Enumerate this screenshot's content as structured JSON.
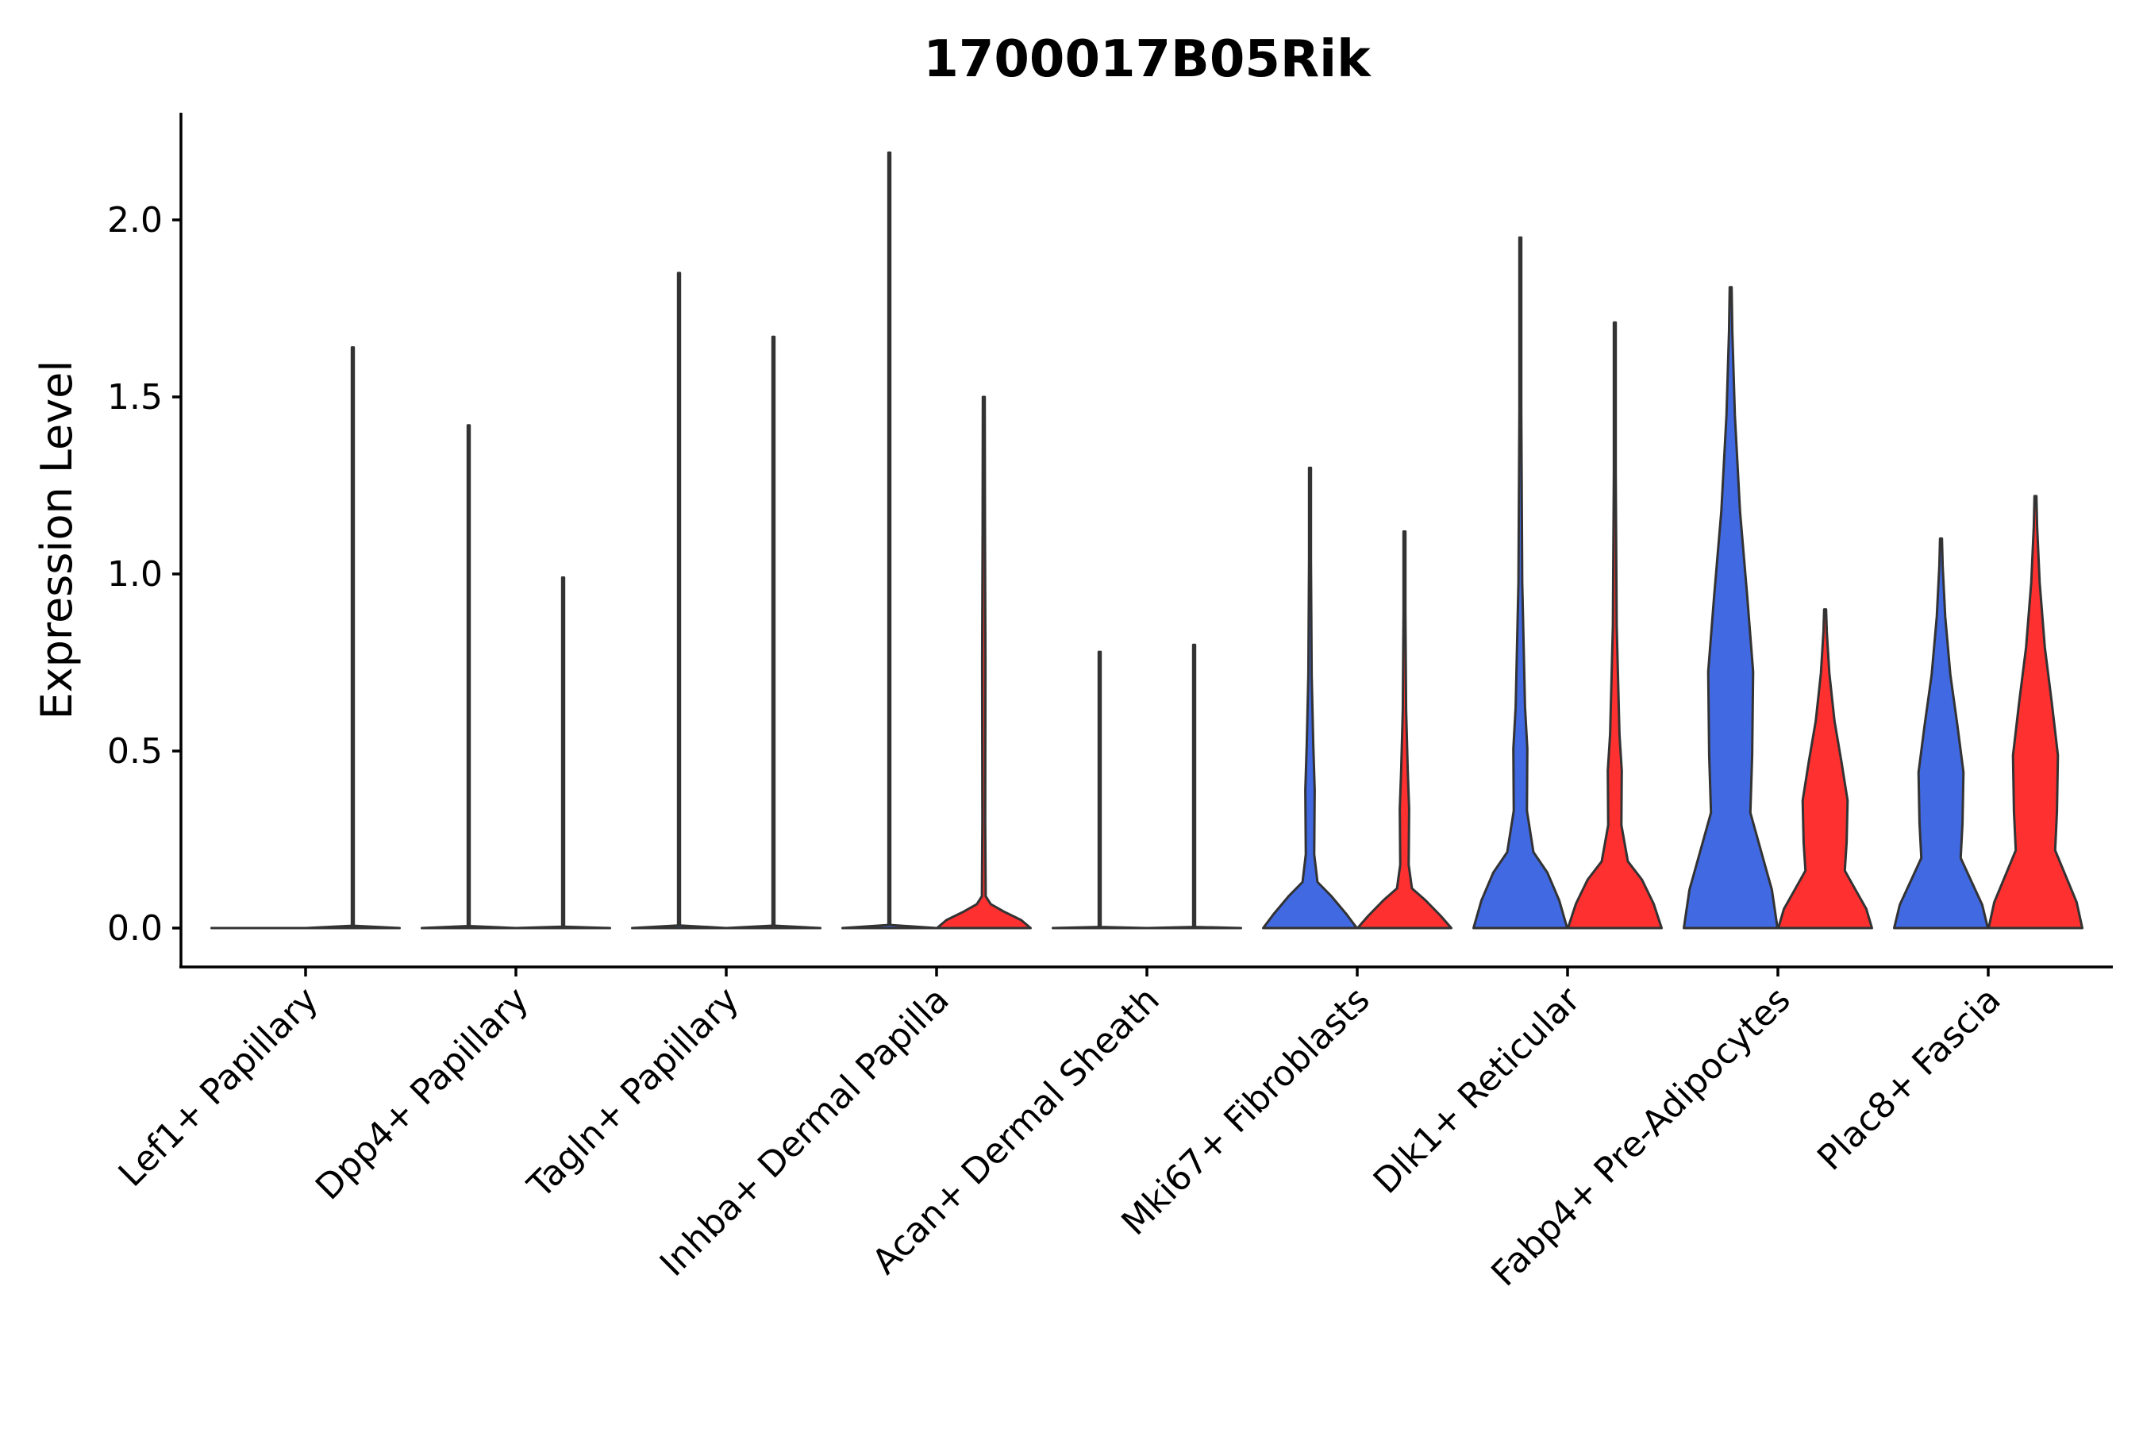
{
  "chart_data": {
    "type": "violin",
    "title": "1700017B05Rik",
    "xlabel": "",
    "ylabel": "Expression Level",
    "ylim": [
      -0.11,
      2.3
    ],
    "yticks": [
      "0.0",
      "0.5",
      "1.0",
      "1.5",
      "2.0"
    ],
    "grid": false,
    "legend": "none",
    "colors": {
      "group_a": "#4169E1",
      "group_b": "#FF3030",
      "outline": "#333333"
    },
    "categories": [
      "Lef1+ Papillary",
      "Dpp4+ Papillary",
      "Tagln+ Papillary",
      "Inhba+ Dermal Papilla",
      "Acan+ Dermal Sheath",
      "Mki67+ Fibroblasts",
      "Dlk1+ Reticular",
      "Fabp4+ Pre-Adipocytes",
      "Plac8+ Fascia"
    ],
    "violins": [
      {
        "category": "Lef1+ Papillary",
        "group": "a",
        "max": 0.0,
        "shape": "flat"
      },
      {
        "category": "Lef1+ Papillary",
        "group": "b",
        "max": 1.64,
        "shape": "spike"
      },
      {
        "category": "Dpp4+ Papillary",
        "group": "a",
        "max": 1.42,
        "shape": "spike"
      },
      {
        "category": "Dpp4+ Papillary",
        "group": "b",
        "max": 0.99,
        "shape": "spike"
      },
      {
        "category": "Tagln+ Papillary",
        "group": "a",
        "max": 1.85,
        "shape": "spike"
      },
      {
        "category": "Tagln+ Papillary",
        "group": "b",
        "max": 1.67,
        "shape": "spike"
      },
      {
        "category": "Inhba+ Dermal Papilla",
        "group": "a",
        "max": 2.19,
        "shape": "spike"
      },
      {
        "category": "Inhba+ Dermal Papilla",
        "group": "b",
        "max": 1.5,
        "shape": "small"
      },
      {
        "category": "Acan+ Dermal Sheath",
        "group": "a",
        "max": 0.78,
        "shape": "spike"
      },
      {
        "category": "Acan+ Dermal Sheath",
        "group": "b",
        "max": 0.8,
        "shape": "spike"
      },
      {
        "category": "Mki67+ Fibroblasts",
        "group": "a",
        "max": 1.3,
        "shape": "mid"
      },
      {
        "category": "Mki67+ Fibroblasts",
        "group": "b",
        "max": 1.12,
        "shape": "mid"
      },
      {
        "category": "Dlk1+ Reticular",
        "group": "a",
        "max": 1.95,
        "shape": "wide"
      },
      {
        "category": "Dlk1+ Reticular",
        "group": "b",
        "max": 1.71,
        "shape": "wide"
      },
      {
        "category": "Fabp4+ Pre-Adipocytes",
        "group": "a",
        "max": 1.81,
        "shape": "full"
      },
      {
        "category": "Fabp4+ Pre-Adipocytes",
        "group": "b",
        "max": 0.9,
        "shape": "full"
      },
      {
        "category": "Plac8+ Fascia",
        "group": "a",
        "max": 1.1,
        "shape": "full"
      },
      {
        "category": "Plac8+ Fascia",
        "group": "b",
        "max": 1.22,
        "shape": "full"
      }
    ]
  }
}
